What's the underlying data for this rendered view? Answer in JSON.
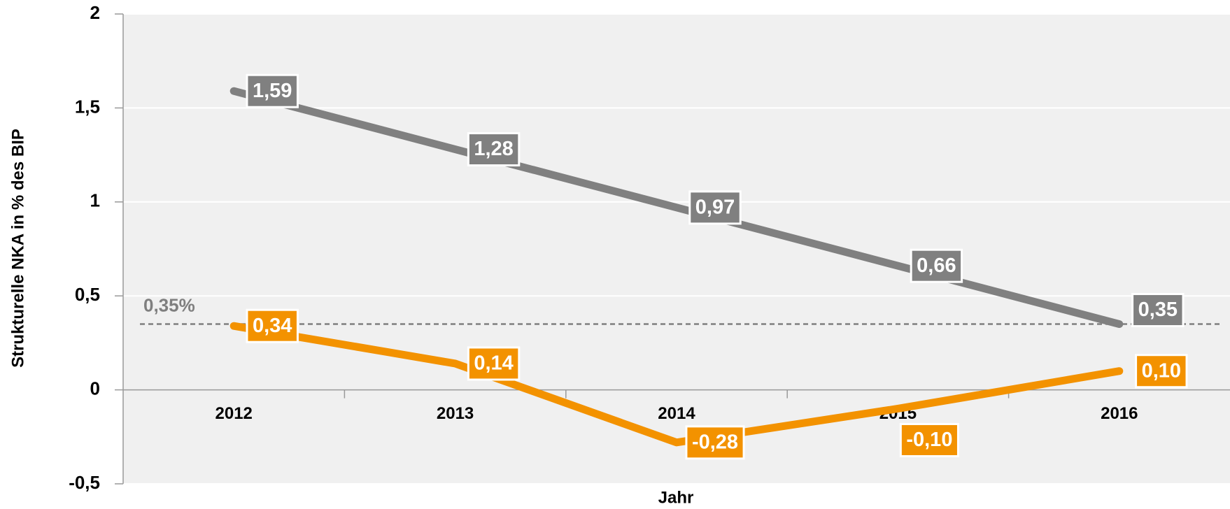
{
  "chart_data": {
    "type": "line",
    "x_label": "Jahr",
    "y_label": "Strukturelle NKA in % des BIP",
    "categories": [
      "2012",
      "2013",
      "2014",
      "2015",
      "2016"
    ],
    "series": [
      {
        "color": "#808080",
        "values": [
          1.59,
          1.28,
          0.97,
          0.66,
          0.35
        ],
        "value_labels": [
          "1,59",
          "1,28",
          "0,97",
          "0,66",
          "0,35"
        ]
      },
      {
        "color": "#f39200",
        "values": [
          0.34,
          0.14,
          -0.28,
          -0.1,
          0.1
        ],
        "value_labels": [
          "0,34",
          "0,14",
          "-0,28",
          "-0,10",
          "0,10"
        ]
      }
    ],
    "ylim": [
      -0.5,
      2
    ],
    "yticks": [
      {
        "value": -0.5,
        "label": "-0,5"
      },
      0,
      {
        "value": 0.5,
        "label": "0,5"
      },
      1,
      {
        "value": 1.5,
        "label": "1,5"
      },
      2
    ],
    "grid": true,
    "reference_line": {
      "value": 0.35,
      "label": "0,35%",
      "color": "#7f7f7f"
    }
  }
}
